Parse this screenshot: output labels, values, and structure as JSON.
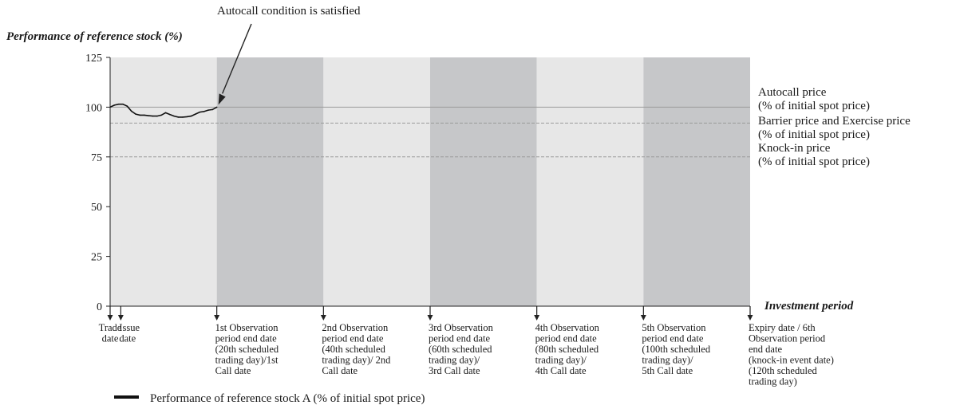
{
  "chart_data": {
    "type": "line",
    "ylabel": "Performance of reference stock (%)",
    "xlabel": "Investment period",
    "ylim": [
      0,
      125
    ],
    "xlim": [
      0,
      120
    ],
    "y_ticks": [
      "0",
      "25",
      "50",
      "75",
      "100",
      "125"
    ],
    "y_tick_values": [
      0,
      25,
      50,
      75,
      100,
      125
    ],
    "grid": false,
    "legend_placement": "bottom-left",
    "shaded_periods": [
      {
        "from": 0,
        "to": 20,
        "shade": "light"
      },
      {
        "from": 20,
        "to": 40,
        "shade": "dark"
      },
      {
        "from": 40,
        "to": 60,
        "shade": "light"
      },
      {
        "from": 60,
        "to": 80,
        "shade": "dark"
      },
      {
        "from": 80,
        "to": 100,
        "shade": "light"
      },
      {
        "from": 100,
        "to": 120,
        "shade": "dark"
      }
    ],
    "reference_lines": [
      {
        "id": "autocall",
        "value": 100,
        "style": "solid",
        "label_lines": [
          "Autocall price",
          "(% of initial spot price)"
        ]
      },
      {
        "id": "barrier",
        "value": 92,
        "style": "dashed",
        "label_lines": [
          "Barrier price and Exercise price",
          "(% of initial spot price)"
        ]
      },
      {
        "id": "knockin",
        "value": 75,
        "style": "dashed",
        "label_lines": [
          "Knock-in price",
          "(% of initial spot price)"
        ]
      }
    ],
    "x_markers": [
      {
        "day": 0,
        "lines": [
          "Trade",
          "date"
        ],
        "align": "middle"
      },
      {
        "day": 2,
        "lines": [
          "Issue",
          "date"
        ],
        "align": "start"
      },
      {
        "day": 20,
        "lines": [
          "1st Observation",
          "period end date",
          "(20th scheduled",
          "trading day)/1st",
          "Call date"
        ],
        "align": "start"
      },
      {
        "day": 40,
        "lines": [
          "2nd Observation",
          "period end date",
          "(40th scheduled",
          "trading day)/ 2nd",
          "Call date"
        ],
        "align": "start"
      },
      {
        "day": 60,
        "lines": [
          "3rd Observation",
          "period end date",
          "(60th scheduled",
          "trading day)/",
          "3rd Call date"
        ],
        "align": "start"
      },
      {
        "day": 80,
        "lines": [
          "4th Observation",
          "period end date",
          "(80th scheduled",
          "trading day)/",
          "4th Call date"
        ],
        "align": "start"
      },
      {
        "day": 100,
        "lines": [
          "5th Observation",
          "period end date",
          "(100th scheduled",
          "trading day)/",
          "5th Call date"
        ],
        "align": "start"
      },
      {
        "day": 120,
        "lines": [
          "Expiry date / 6th",
          "Observation period",
          "end date",
          "(knock-in event date)",
          "(120th scheduled",
          "trading day)"
        ],
        "align": "start"
      }
    ],
    "series": [
      {
        "name": "Performance of reference stock A (% of initial spot price)",
        "x": [
          0,
          0.8,
          1.6,
          2.4,
          3.2,
          4.0,
          4.8,
          5.6,
          6.4,
          7.2,
          8.0,
          8.8,
          9.6,
          10.4,
          11.2,
          12.0,
          12.8,
          13.6,
          14.4,
          15.2,
          16.0,
          16.8,
          17.6,
          18.4,
          19.2,
          20.0
        ],
        "values": [
          100,
          101,
          101.5,
          101.5,
          100.5,
          98,
          96.5,
          96,
          96,
          95.7,
          95.5,
          95.5,
          96,
          97.2,
          96.3,
          95.5,
          95,
          95,
          95.2,
          95.5,
          96.5,
          97.5,
          97.8,
          98.5,
          98.8,
          100
        ]
      }
    ],
    "annotations": [
      {
        "text": "Autocall condition is satisfied",
        "target_day": 20,
        "target_value": 100
      }
    ],
    "legend_items": [
      "Performance of reference stock A (% of initial spot price)"
    ]
  },
  "colors": {
    "shade_light": "#e7e7e7",
    "shade_dark": "#c6c7c9",
    "line": "#111111",
    "ref_line": "#9a9a9a",
    "axis": "#222222"
  }
}
